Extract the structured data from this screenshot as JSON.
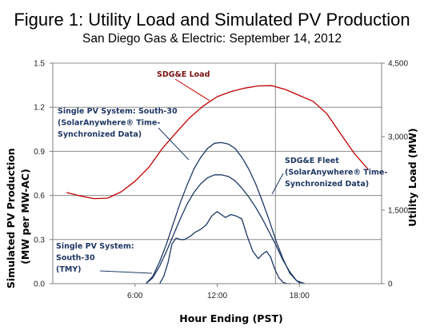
{
  "chart_data": {
    "type": "line",
    "title": "Figure 1: Utility Load and Simulated PV Production",
    "subtitle": "San Diego Gas & Electric: September 14, 2012",
    "xlabel": "Hour Ending (PST)",
    "ylabel_left": [
      "Simulated PV Production",
      "(MW per MW-AC)"
    ],
    "ylabel_right": "Utility Load (MW)",
    "xlim": [
      0,
      24
    ],
    "ylim_left": [
      0,
      1.5
    ],
    "ylim_right": [
      0,
      4500
    ],
    "x_ticks": [
      6,
      12,
      18
    ],
    "x_tick_labels": [
      "6:00",
      "12:00",
      "18:00"
    ],
    "y_ticks_left": [
      0,
      0.3,
      0.6,
      0.9,
      1.2,
      1.5
    ],
    "y_tick_labels_left": [
      "0.0",
      "0.3",
      "0.6",
      "0.9",
      "1.2",
      "1.5"
    ],
    "y_ticks_right": [
      0,
      1500,
      3000,
      4500
    ],
    "y_tick_labels_right": [
      "0",
      "1,500",
      "3,000",
      "4,500"
    ],
    "grid": true,
    "vertical_marker_x": 16.25,
    "series": [
      {
        "name": "SDG&E Load",
        "axis": "right",
        "color": "#c00000",
        "x": [
          1,
          2,
          3,
          4,
          5,
          6,
          7,
          8,
          9,
          10,
          11,
          12,
          13,
          14,
          15,
          16,
          17,
          18,
          19,
          20,
          21,
          22,
          23
        ],
        "y": [
          1860,
          1790,
          1735,
          1745,
          1875,
          2090,
          2370,
          2760,
          3080,
          3390,
          3630,
          3815,
          3920,
          3990,
          4035,
          4040,
          3960,
          3840,
          3720,
          3470,
          3060,
          2660,
          2340
        ]
      },
      {
        "name": "Single PV System: South-30 (SolarAnywhere® Time-Synchronized Data)",
        "axis": "left",
        "color": "#1f3864",
        "x": [
          6.8,
          7.3,
          7.8,
          8.3,
          8.8,
          9.3,
          9.8,
          10.3,
          10.8,
          11.3,
          11.8,
          12.3,
          12.8,
          13.3,
          13.8,
          14.3,
          14.8,
          15.3,
          15.8,
          16.3,
          16.8,
          17.3,
          17.8,
          18.1
        ],
        "y": [
          0.0,
          0.05,
          0.15,
          0.27,
          0.41,
          0.55,
          0.67,
          0.78,
          0.86,
          0.92,
          0.955,
          0.96,
          0.95,
          0.92,
          0.86,
          0.78,
          0.68,
          0.56,
          0.43,
          0.29,
          0.17,
          0.07,
          0.02,
          0.0
        ]
      },
      {
        "name": "SDG&E Fleet (SolarAnywhere® Time-Synchronized Data)",
        "axis": "left",
        "color": "#1f3864",
        "x": [
          6.8,
          7.3,
          7.8,
          8.3,
          8.8,
          9.3,
          9.8,
          10.3,
          10.8,
          11.3,
          11.8,
          12.3,
          12.8,
          13.3,
          13.8,
          14.3,
          14.8,
          15.3,
          15.8,
          16.3,
          16.8,
          17.3,
          17.8,
          18.4
        ],
        "y": [
          0.0,
          0.04,
          0.12,
          0.22,
          0.33,
          0.44,
          0.54,
          0.62,
          0.68,
          0.72,
          0.74,
          0.74,
          0.73,
          0.7,
          0.65,
          0.59,
          0.52,
          0.44,
          0.35,
          0.26,
          0.16,
          0.08,
          0.02,
          0.0
        ]
      },
      {
        "name": "Single PV System: South-30 (TMY)",
        "axis": "left",
        "color": "#1f3864",
        "x": [
          7.8,
          8.1,
          8.4,
          8.7,
          9.0,
          9.3,
          9.6,
          10.0,
          10.4,
          10.8,
          11.2,
          11.6,
          12.0,
          12.3,
          12.6,
          13.0,
          13.4,
          13.8,
          14.2,
          14.6,
          15.0,
          15.3,
          15.6,
          15.9,
          16.2,
          16.5,
          16.8,
          17.1,
          17.4
        ],
        "y": [
          0.0,
          0.05,
          0.14,
          0.27,
          0.31,
          0.3,
          0.3,
          0.32,
          0.35,
          0.37,
          0.4,
          0.46,
          0.49,
          0.47,
          0.45,
          0.47,
          0.46,
          0.44,
          0.32,
          0.22,
          0.17,
          0.2,
          0.22,
          0.18,
          0.1,
          0.04,
          0.01,
          0.0,
          0.0
        ]
      }
    ],
    "annotations": [
      {
        "lines": [
          "SDG&E Load"
        ]
      },
      {
        "lines": [
          "Single PV System: South-30",
          "(SolarAnywhere® Time-",
          "Synchronized Data)"
        ]
      },
      {
        "lines": [
          "SDG&E Fleet",
          "(SolarAnywhere® Time-",
          "Synchronized Data)"
        ]
      },
      {
        "lines": [
          "Single PV System:",
          "South-30",
          "(TMY)"
        ]
      }
    ]
  }
}
